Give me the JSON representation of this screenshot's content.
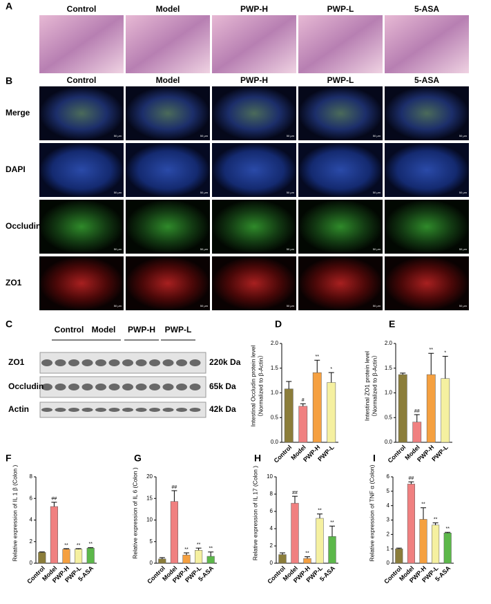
{
  "histology": {
    "panel": "A",
    "groups": [
      "Control",
      "Model",
      "PWP-H",
      "PWP-L",
      "5-ASA"
    ]
  },
  "immunofluorescence": {
    "panel": "B",
    "groups": [
      "Control",
      "Model",
      "PWP-H",
      "PWP-L",
      "5-ASA"
    ],
    "rows": [
      "Merge",
      "DAPI",
      "Occludin",
      "ZO1"
    ],
    "scale_bar": "50 μm"
  },
  "western_blot": {
    "panel": "C",
    "groups": [
      "Control",
      "Model",
      "PWP-H",
      "PWP-L"
    ],
    "bands": [
      {
        "protein": "ZO1",
        "size": "220k Da"
      },
      {
        "protein": "Occludin",
        "size": "65k Da"
      },
      {
        "protein": "Actin",
        "size": "42k Da"
      }
    ]
  },
  "chart_data": [
    {
      "type": "bar",
      "panel": "D",
      "ylabel": [
        "Intestinal Occludin protein level",
        "（Normalized to β-Actin）"
      ],
      "categories": [
        "Control",
        "Model",
        "PWP-H",
        "PWP-L"
      ],
      "values": [
        1.08,
        0.73,
        1.41,
        1.21
      ],
      "errors": [
        0.15,
        0.05,
        0.25,
        0.2
      ],
      "annotations": [
        null,
        "#",
        "**",
        "*"
      ],
      "colors": [
        "#8b7d3a",
        "#f08080",
        "#f5a040",
        "#f5f0a0"
      ],
      "ylim": [
        0,
        2
      ],
      "yticks": [
        {
          "value": 0,
          "label": "0.0"
        },
        0.5,
        {
          "value": 1,
          "label": "1.0"
        },
        1.5,
        {
          "value": 2,
          "label": "2.0"
        }
      ]
    },
    {
      "type": "bar",
      "panel": "E",
      "ylabel": [
        "Intestinal ZO1 protein level",
        "（Normalized to β-Actin）"
      ],
      "categories": [
        "Control",
        "Model",
        "PWP-H",
        "PWP-L"
      ],
      "values": [
        1.37,
        0.41,
        1.37,
        1.29
      ],
      "errors": [
        0.03,
        0.15,
        0.43,
        0.45
      ],
      "annotations": [
        null,
        "##",
        "**",
        "*"
      ],
      "colors": [
        "#8b7d3a",
        "#f08080",
        "#f5a040",
        "#f5f0a0"
      ],
      "ylim": [
        0,
        2
      ],
      "yticks": [
        {
          "value": 0,
          "label": "0.0"
        },
        0.5,
        {
          "value": 1,
          "label": "1.0"
        },
        1.5,
        {
          "value": 2,
          "label": "2.0"
        }
      ]
    },
    {
      "type": "bar",
      "panel": "F",
      "ylabel": [
        "Relative expression of IL 1 β (Colon )"
      ],
      "categories": [
        "Control",
        "Model",
        "PWP-H",
        "PWP-L",
        "5-ASA"
      ],
      "values": [
        1.0,
        5.25,
        1.3,
        1.3,
        1.4
      ],
      "errors": [
        0.05,
        0.4,
        0.05,
        0.05,
        0.05
      ],
      "annotations": [
        null,
        "##",
        "**",
        "**",
        "**"
      ],
      "colors": [
        "#8b7d3a",
        "#f08080",
        "#f5a040",
        "#f5f0a0",
        "#5cb84a"
      ],
      "ylim": [
        0,
        8
      ],
      "yticks": [
        0,
        2,
        4,
        6,
        8
      ]
    },
    {
      "type": "bar",
      "panel": "G",
      "ylabel": [
        "Relative expression of IL 6 (Colon  )"
      ],
      "categories": [
        "Control",
        "Model",
        "PWP-H",
        "PWP-L",
        "5-ASA"
      ],
      "values": [
        1.0,
        14.3,
        1.9,
        3.0,
        1.6
      ],
      "errors": [
        0.3,
        2.5,
        0.5,
        0.5,
        1.0
      ],
      "annotations": [
        null,
        "##",
        "**",
        "**",
        "**"
      ],
      "colors": [
        "#8b7d3a",
        "#f08080",
        "#f5a040",
        "#f5f0a0",
        "#5cb84a"
      ],
      "ylim": [
        0,
        20
      ],
      "yticks": [
        0,
        5,
        10,
        15,
        20
      ]
    },
    {
      "type": "bar",
      "panel": "H",
      "ylabel": [
        "Relative expression of IL 17 (Colon  )"
      ],
      "categories": [
        "Control",
        "Model",
        "PWP-H",
        "PWP-L",
        "5-ASA"
      ],
      "values": [
        1.0,
        6.95,
        0.55,
        5.2,
        3.1
      ],
      "errors": [
        0.2,
        0.8,
        0.2,
        0.5,
        1.2
      ],
      "annotations": [
        null,
        "##",
        "**",
        "**",
        "**"
      ],
      "colors": [
        "#8b7d3a",
        "#f08080",
        "#f5a040",
        "#f5f0a0",
        "#5cb84a"
      ],
      "ylim": [
        0,
        10
      ],
      "yticks": [
        0,
        2,
        4,
        6,
        8,
        10
      ]
    },
    {
      "type": "bar",
      "panel": "I",
      "ylabel": [
        "Relative expression of TNF α (Colon)"
      ],
      "categories": [
        "Control",
        "Model",
        "PWP-H",
        "PWP-L",
        "5-ASA"
      ],
      "values": [
        1.0,
        5.5,
        3.05,
        2.65,
        2.1
      ],
      "errors": [
        0.05,
        0.15,
        0.8,
        0.15,
        0.05
      ],
      "annotations": [
        null,
        "##",
        "**",
        "**",
        "**"
      ],
      "colors": [
        "#8b7d3a",
        "#f08080",
        "#f5a040",
        "#f5f0a0",
        "#5cb84a"
      ],
      "ylim": [
        0,
        6
      ],
      "yticks": [
        0,
        1,
        2,
        3,
        4,
        5,
        6
      ]
    }
  ]
}
